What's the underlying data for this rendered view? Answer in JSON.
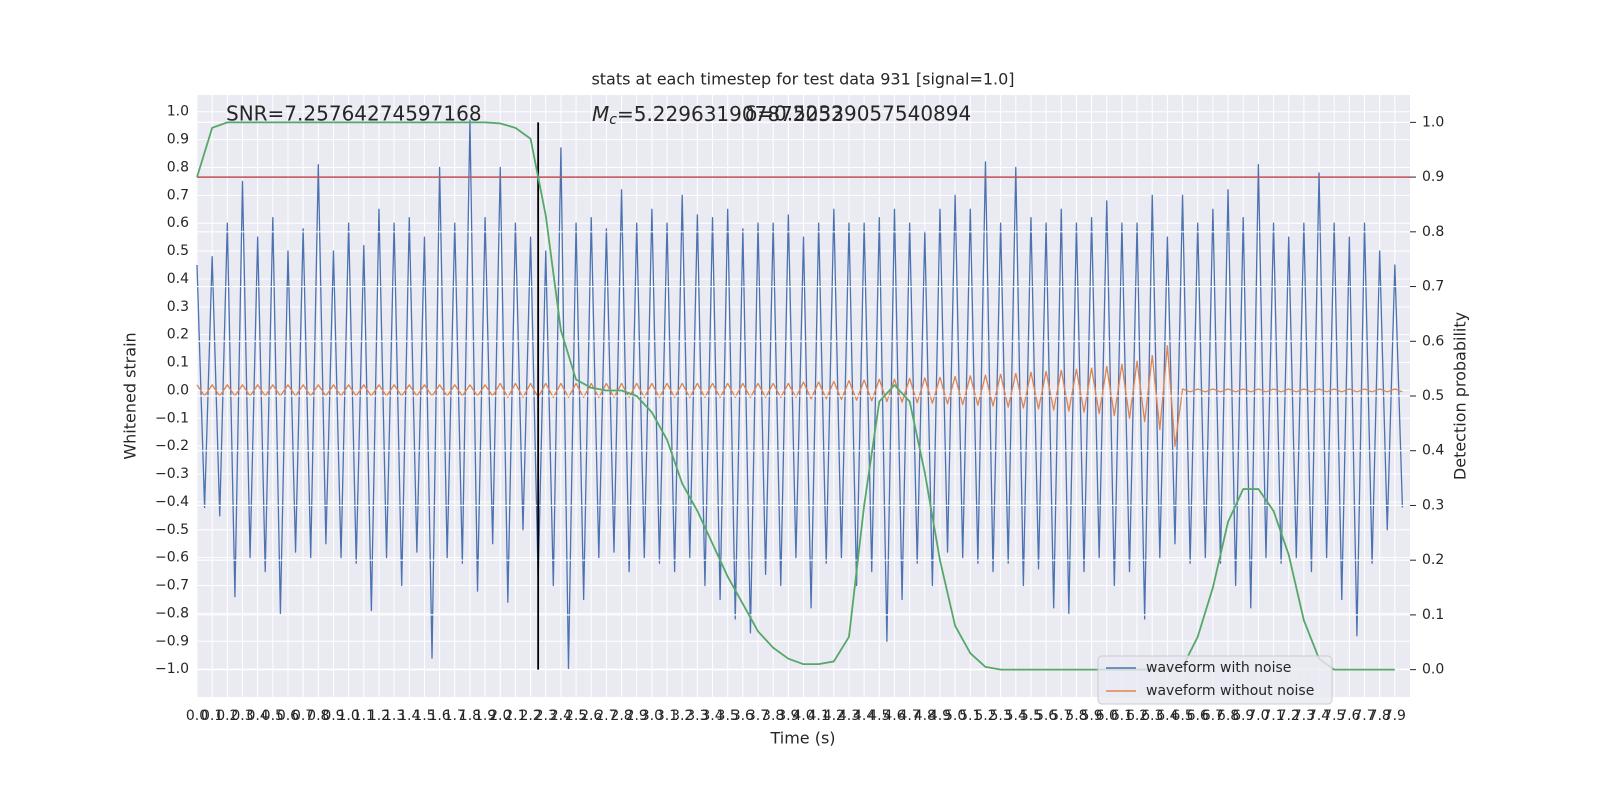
{
  "chart_data": {
    "type": "line",
    "title": "stats at each timestep for test data 931 [signal=1.0]",
    "x_label": "Time (s)",
    "y_label": "Whitened strain",
    "y2_label": "Detection probability",
    "grid": true,
    "legend_position": "lower right",
    "annotations": [
      {
        "text": "SNR=7.25764274597168"
      },
      {
        "symbol": "M",
        "subscript": "c",
        "text": "=5.229631907872052"
      },
      {
        "text": "δ=0.52339057540894"
      }
    ],
    "xlim": [
      0,
      8.0
    ],
    "ylim": [
      -1.1,
      1.06
    ],
    "y2lim": [
      -0.05,
      1.05
    ],
    "xticks": [
      {
        "value": 0,
        "label": "0.0"
      },
      0.1,
      0.2,
      0.3,
      0.4,
      0.5,
      0.6,
      0.7,
      0.8,
      0.9,
      {
        "value": 1,
        "label": "1.0"
      },
      1.1,
      1.2,
      1.3,
      1.4,
      1.5,
      1.6,
      1.7,
      1.8,
      1.9,
      {
        "value": 2,
        "label": "2.0"
      },
      2.1,
      2.2,
      2.3,
      2.4,
      2.5,
      2.6,
      2.7,
      2.8,
      2.9,
      {
        "value": 3,
        "label": "3.0"
      },
      3.1,
      3.2,
      3.3,
      3.4,
      3.5,
      3.6,
      3.7,
      3.8,
      3.9,
      {
        "value": 4,
        "label": "4.0"
      },
      4.1,
      4.2,
      4.3,
      4.4,
      4.5,
      4.6,
      4.7,
      4.8,
      4.9,
      {
        "value": 5,
        "label": "5.0"
      },
      5.1,
      5.2,
      5.3,
      5.4,
      5.5,
      5.6,
      5.7,
      5.8,
      5.9,
      {
        "value": 6,
        "label": "6.0"
      },
      6.1,
      6.2,
      6.3,
      6.4,
      6.5,
      6.6,
      6.7,
      6.8,
      6.9,
      {
        "value": 7,
        "label": "7.0"
      },
      7.1,
      7.2,
      7.3,
      7.4,
      7.5,
      7.6,
      7.7,
      7.8,
      7.9
    ],
    "yticks": [
      {
        "value": -1,
        "label": "−1.0"
      },
      {
        "value": -0.9,
        "label": "−0.9"
      },
      {
        "value": -0.8,
        "label": "−0.8"
      },
      {
        "value": -0.7,
        "label": "−0.7"
      },
      {
        "value": -0.6,
        "label": "−0.6"
      },
      {
        "value": -0.5,
        "label": "−0.5"
      },
      {
        "value": -0.4,
        "label": "−0.4"
      },
      {
        "value": -0.3,
        "label": "−0.3"
      },
      {
        "value": -0.2,
        "label": "−0.2"
      },
      {
        "value": -0.1,
        "label": "−0.1"
      },
      {
        "value": 0,
        "label": "0.0"
      },
      0.1,
      0.2,
      0.3,
      0.4,
      0.5,
      0.6,
      0.7,
      0.8,
      0.9,
      {
        "value": 1,
        "label": "1.0"
      }
    ],
    "y2ticks": [
      {
        "value": 0,
        "label": "0.0"
      },
      0.1,
      0.2,
      0.3,
      0.4,
      0.5,
      0.6,
      0.7,
      0.8,
      0.9,
      {
        "value": 1,
        "label": "1.0"
      }
    ],
    "hlines": [
      {
        "y": 0.9,
        "axis": "y2",
        "color": "#c44e52"
      }
    ],
    "vlines": [
      {
        "x": 2.25,
        "ymin": 0,
        "ymax": 1,
        "axis": "y2",
        "color": "#000000"
      }
    ],
    "x": [
      0,
      0.05,
      0.1,
      0.15,
      0.2,
      0.25,
      0.3,
      0.35,
      0.4,
      0.45,
      0.5,
      0.55,
      0.6,
      0.65,
      0.7,
      0.75,
      0.8,
      0.85,
      0.9,
      0.95,
      1,
      1.05,
      1.1,
      1.15,
      1.2,
      1.25,
      1.3,
      1.35,
      1.4,
      1.45,
      1.5,
      1.55,
      1.6,
      1.65,
      1.7,
      1.75,
      1.8,
      1.85,
      1.9,
      1.95,
      2,
      2.05,
      2.1,
      2.15,
      2.2,
      2.25,
      2.3,
      2.35,
      2.4,
      2.45,
      2.5,
      2.55,
      2.6,
      2.65,
      2.7,
      2.75,
      2.8,
      2.85,
      2.9,
      2.95,
      3,
      3.05,
      3.1,
      3.15,
      3.2,
      3.25,
      3.3,
      3.35,
      3.4,
      3.45,
      3.5,
      3.55,
      3.6,
      3.65,
      3.7,
      3.75,
      3.8,
      3.85,
      3.9,
      3.95,
      4,
      4.05,
      4.1,
      4.15,
      4.2,
      4.25,
      4.3,
      4.35,
      4.4,
      4.45,
      4.5,
      4.55,
      4.6,
      4.65,
      4.7,
      4.75,
      4.8,
      4.85,
      4.9,
      4.95,
      5,
      5.05,
      5.1,
      5.15,
      5.2,
      5.25,
      5.3,
      5.35,
      5.4,
      5.45,
      5.5,
      5.55,
      5.6,
      5.65,
      5.7,
      5.75,
      5.8,
      5.85,
      5.9,
      5.95,
      6,
      6.05,
      6.1,
      6.15,
      6.2,
      6.25,
      6.3,
      6.35,
      6.4,
      6.45,
      6.5,
      6.55,
      6.6,
      6.65,
      6.7,
      6.75,
      6.8,
      6.85,
      6.9,
      6.95,
      7,
      7.05,
      7.1,
      7.15,
      7.2,
      7.25,
      7.3,
      7.35,
      7.4,
      7.45,
      7.5,
      7.55,
      7.6,
      7.65,
      7.7,
      7.75,
      7.8,
      7.85,
      7.9,
      7.95
    ],
    "series": [
      {
        "name": "waveform with noise",
        "color": "#4c72b0",
        "values": [
          0.45,
          -0.42,
          0.48,
          -0.45,
          0.6,
          -0.74,
          0.75,
          -0.6,
          0.55,
          -0.65,
          0.62,
          -0.8,
          0.5,
          -0.58,
          0.58,
          -0.6,
          0.81,
          -0.55,
          0.5,
          -0.6,
          0.6,
          -0.62,
          0.52,
          -0.79,
          0.65,
          -0.6,
          0.6,
          -0.7,
          0.62,
          -0.58,
          0.55,
          -0.96,
          0.8,
          -0.6,
          0.6,
          -0.62,
          0.97,
          -0.72,
          0.62,
          -0.55,
          0.8,
          -0.76,
          0.6,
          -0.5,
          0.55,
          -0.68,
          0.5,
          -0.7,
          0.87,
          -1.0,
          0.6,
          -0.75,
          0.62,
          -0.6,
          0.58,
          -0.58,
          0.72,
          -0.65,
          0.6,
          -0.6,
          0.65,
          -0.62,
          0.6,
          -0.65,
          0.7,
          -0.6,
          0.63,
          -0.7,
          0.62,
          -0.75,
          0.65,
          -0.82,
          0.58,
          -0.87,
          0.6,
          -0.66,
          0.6,
          -0.7,
          0.63,
          -0.6,
          0.55,
          -0.78,
          0.6,
          -0.62,
          0.65,
          -0.6,
          0.6,
          -0.7,
          0.6,
          -0.65,
          0.62,
          -0.9,
          0.65,
          -0.75,
          0.6,
          -0.62,
          0.57,
          -0.7,
          0.65,
          -0.58,
          0.7,
          -0.6,
          0.65,
          -0.62,
          0.82,
          -0.65,
          0.6,
          -0.62,
          0.8,
          -0.7,
          0.62,
          -0.64,
          0.6,
          -0.78,
          0.65,
          -0.8,
          0.6,
          -0.65,
          0.62,
          -0.6,
          0.68,
          -0.7,
          0.6,
          -0.65,
          0.6,
          -0.82,
          0.7,
          -0.6,
          0.55,
          -0.55,
          0.7,
          -0.62,
          0.6,
          -0.6,
          0.65,
          -0.62,
          0.72,
          -0.7,
          0.62,
          -0.78,
          0.81,
          -0.6,
          0.6,
          -0.62,
          0.55,
          -0.6,
          0.6,
          -0.65,
          0.78,
          -0.6,
          0.6,
          -0.75,
          0.55,
          -0.88,
          0.6,
          -0.62,
          0.5,
          -0.5,
          0.45,
          -0.42
        ]
      },
      {
        "name": "waveform without noise",
        "color": "#dd8452",
        "values": [
          0.02,
          -0.02,
          0.02,
          -0.02,
          0.02,
          -0.02,
          0.02,
          -0.02,
          0.02,
          -0.02,
          0.02,
          -0.02,
          0.02,
          -0.02,
          0.02,
          -0.02,
          0.02,
          -0.02,
          0.02,
          -0.02,
          0.02,
          -0.02,
          0.02,
          -0.02,
          0.02,
          -0.02,
          0.02,
          -0.02,
          0.02,
          -0.02,
          0.02,
          -0.02,
          0.02,
          -0.02,
          0.02,
          -0.02,
          0.02,
          -0.02,
          0.02,
          -0.02,
          0.025,
          -0.025,
          0.025,
          -0.025,
          0.025,
          -0.025,
          0.025,
          -0.025,
          0.025,
          -0.025,
          0.025,
          -0.025,
          0.025,
          -0.025,
          0.025,
          -0.025,
          0.025,
          -0.025,
          0.025,
          -0.025,
          0.025,
          -0.025,
          0.025,
          -0.025,
          0.025,
          -0.025,
          0.025,
          -0.025,
          0.025,
          -0.025,
          0.025,
          -0.025,
          0.025,
          -0.025,
          0.025,
          -0.025,
          0.025,
          -0.025,
          0.025,
          -0.025,
          0.03,
          -0.03,
          0.03,
          -0.03,
          0.032,
          -0.032,
          0.035,
          -0.035,
          0.037,
          -0.037,
          0.04,
          -0.04,
          0.04,
          -0.042,
          0.043,
          -0.044,
          0.045,
          -0.046,
          0.047,
          -0.048,
          0.05,
          -0.051,
          0.052,
          -0.053,
          0.055,
          -0.056,
          0.058,
          -0.06,
          0.061,
          -0.063,
          0.065,
          -0.066,
          0.068,
          -0.07,
          0.072,
          -0.074,
          0.076,
          -0.078,
          0.08,
          -0.083,
          0.086,
          -0.09,
          0.094,
          -0.1,
          0.105,
          -0.112,
          0.125,
          -0.14,
          0.16,
          -0.2,
          0.005,
          -0.005,
          0.005,
          -0.005,
          0.005,
          -0.005,
          0.005,
          -0.005,
          0.005,
          -0.005,
          0.005,
          -0.005,
          0.005,
          -0.005,
          0.005,
          -0.005,
          0.005,
          -0.005,
          0.005,
          -0.005,
          0.005,
          -0.005,
          0.005,
          -0.005,
          0.005,
          -0.005,
          0.005,
          -0.005,
          0.005,
          -0.005
        ]
      },
      {
        "color": "#55a868",
        "axis": "y2",
        "x": [
          0,
          0.1,
          0.2,
          0.3,
          0.4,
          0.5,
          0.6,
          0.7,
          0.8,
          0.9,
          1,
          1.1,
          1.2,
          1.3,
          1.4,
          1.5,
          1.6,
          1.7,
          1.8,
          1.9,
          2,
          2.1,
          2.2,
          2.3,
          2.4,
          2.5,
          2.6,
          2.7,
          2.8,
          2.9,
          3,
          3.1,
          3.2,
          3.3,
          3.4,
          3.5,
          3.6,
          3.7,
          3.8,
          3.9,
          4,
          4.1,
          4.2,
          4.3,
          4.4,
          4.5,
          4.6,
          4.7,
          4.8,
          4.9,
          5,
          5.1,
          5.2,
          5.3,
          5.4,
          5.5,
          5.6,
          5.7,
          5.8,
          5.9,
          6,
          6.1,
          6.2,
          6.3,
          6.4,
          6.5,
          6.6,
          6.7,
          6.8,
          6.9,
          7,
          7.1,
          7.2,
          7.3,
          7.4,
          7.5,
          7.6,
          7.7,
          7.8,
          7.9
        ],
        "values": [
          0.9,
          0.99,
          1.0,
          1.0,
          1.0,
          1.0,
          1.0,
          1.0,
          1.0,
          1.0,
          1.0,
          1.0,
          1.0,
          1.0,
          1.0,
          1.0,
          1.0,
          1.0,
          1.0,
          1.0,
          0.998,
          0.99,
          0.97,
          0.83,
          0.62,
          0.53,
          0.515,
          0.51,
          0.51,
          0.5,
          0.47,
          0.42,
          0.34,
          0.29,
          0.23,
          0.17,
          0.12,
          0.07,
          0.04,
          0.02,
          0.01,
          0.01,
          0.015,
          0.06,
          0.3,
          0.49,
          0.52,
          0.49,
          0.36,
          0.2,
          0.08,
          0.03,
          0.005,
          0.0,
          0.0,
          0.0,
          0.0,
          0.0,
          0.0,
          0.0,
          0.0,
          0.0,
          0.0,
          0.0,
          0.0,
          0.005,
          0.06,
          0.15,
          0.27,
          0.33,
          0.33,
          0.29,
          0.21,
          0.09,
          0.02,
          0.0,
          0.0,
          0.0,
          0.0,
          0.0
        ]
      }
    ]
  }
}
